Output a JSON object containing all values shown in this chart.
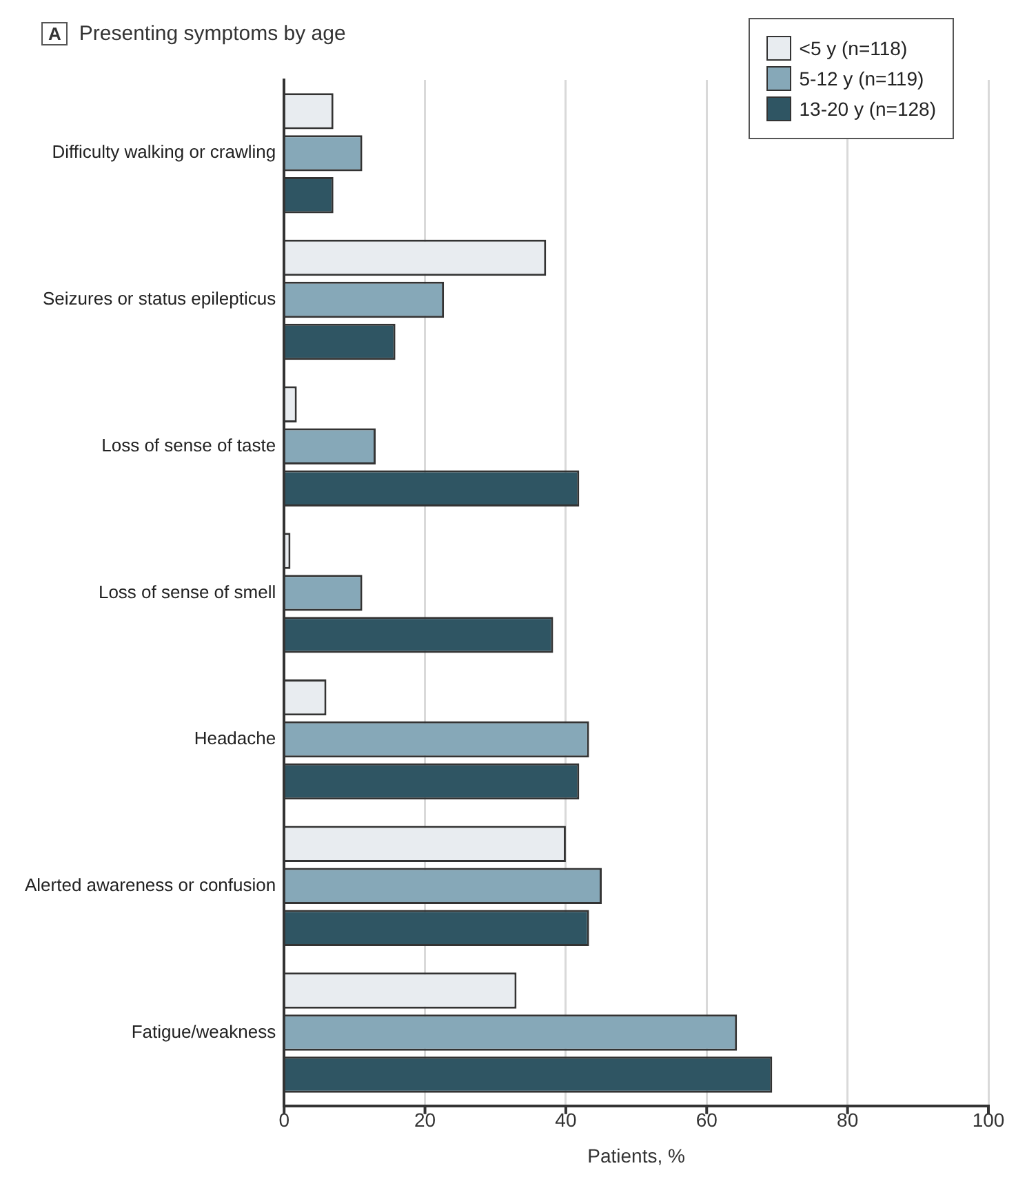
{
  "chart_data": {
    "type": "bar",
    "orientation": "horizontal",
    "title": "Presenting symptoms by age",
    "annotations": [
      "A"
    ],
    "xlabel": "Patients, %",
    "categories": [
      "Difficulty walking or crawling",
      "Seizures or status epilepticus",
      "Loss of sense of taste",
      "Loss of sense of smell",
      "Headache",
      "Alerted awareness or confusion",
      "Fatigue/weakness"
    ],
    "series": [
      {
        "name": "<5 y (n=118)",
        "color": "#e8ecf0",
        "values": [
          7.0,
          37.2,
          1.8,
          0.9,
          6.0,
          40.0,
          33.0
        ]
      },
      {
        "name": "5-12 y (n=119)",
        "color": "#86a8b8",
        "values": [
          11.1,
          22.7,
          13.0,
          11.1,
          43.3,
          45.1,
          64.3
        ]
      },
      {
        "name": "13-20 y (n=128)",
        "color": "#2f5563",
        "values": [
          7.0,
          15.8,
          41.9,
          38.2,
          41.9,
          43.3,
          69.3
        ]
      }
    ],
    "xlim": [
      0,
      100
    ],
    "xticks": [
      0,
      20,
      40,
      60,
      80,
      100
    ],
    "grid": "x",
    "legend": "top right"
  }
}
